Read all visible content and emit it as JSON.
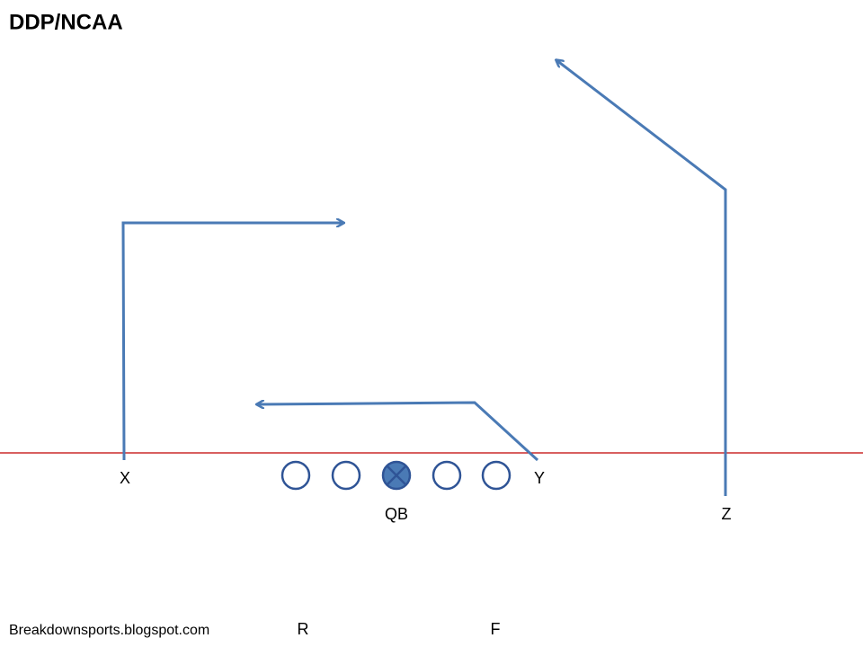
{
  "title": "DDP/NCAA",
  "players": {
    "x": "X",
    "y": "Y",
    "z": "Z",
    "qb": "QB",
    "r": "R",
    "f": "F"
  },
  "footer": "Breakdownsports.blogspot.com"
}
